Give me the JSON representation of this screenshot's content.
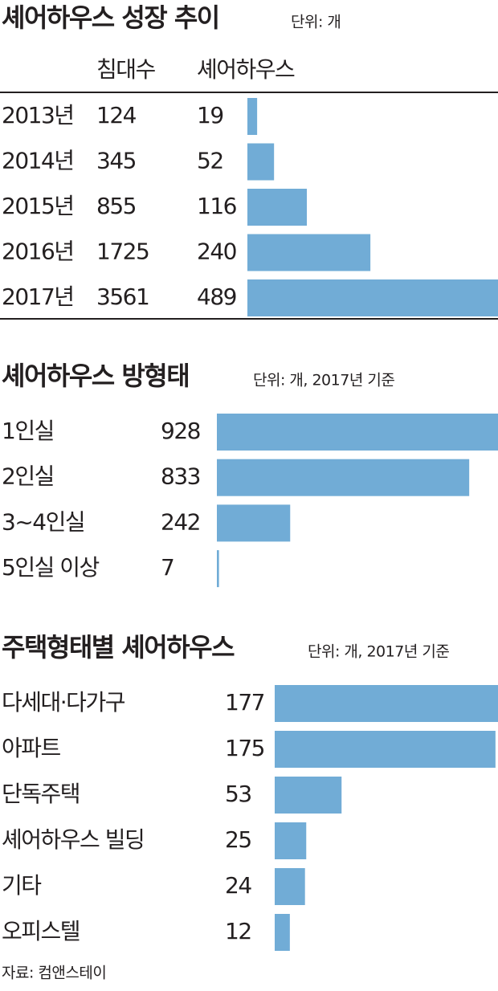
{
  "chart_data": [
    {
      "type": "bar",
      "title": "셰어하우스 성장 추이",
      "unit": "단위: 개",
      "categories": [
        "2013년",
        "2014년",
        "2015년",
        "2016년",
        "2017년"
      ],
      "series": [
        {
          "name": "침대수",
          "values": [
            124,
            345,
            855,
            1725,
            3561
          ]
        },
        {
          "name": "셰어하우스",
          "color": "#71acd6",
          "values": [
            19,
            52,
            116,
            240,
            489
          ]
        }
      ]
    },
    {
      "type": "bar",
      "title": "셰어하우스 방형태",
      "unit": "단위: 개, 2017년 기준",
      "categories": [
        "1인실",
        "2인실",
        "3~4인실",
        "5인실 이상"
      ],
      "series": [
        {
          "color": "#71acd6",
          "values": [
            928,
            833,
            242,
            7
          ]
        }
      ]
    },
    {
      "type": "bar",
      "title": "주택형태별 셰어하우스",
      "unit": "단위: 개, 2017년 기준",
      "categories": [
        "다세대·다가구",
        "아파트",
        "단독주택",
        "셰어하우스 빌딩",
        "기타",
        "오피스텔"
      ],
      "series": [
        {
          "color": "#71acd6",
          "values": [
            177,
            175,
            53,
            25,
            24,
            12
          ]
        }
      ]
    }
  ],
  "source": "자료: 컴앤스테이"
}
